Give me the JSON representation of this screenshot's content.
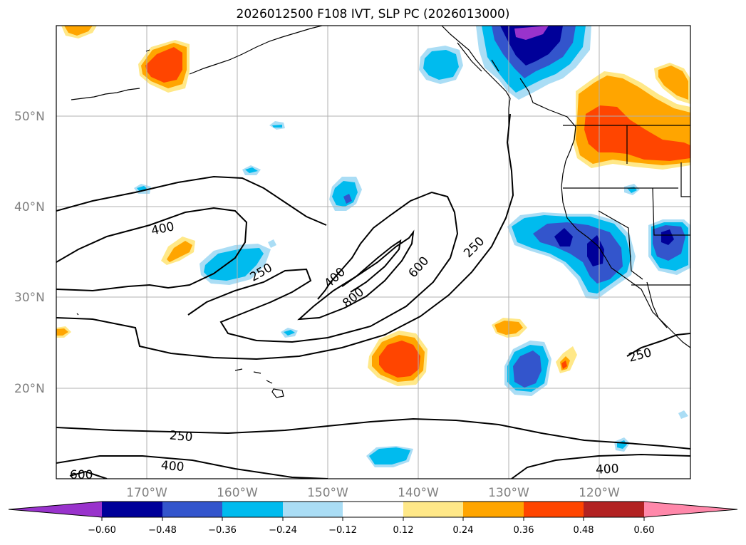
{
  "title": "2026012500 F108 IVT, SLP PC (2026013000)",
  "map": {
    "lat_labels": [
      "50°N",
      "40°N",
      "30°N",
      "20°N"
    ],
    "lon_labels": [
      "170°W",
      "160°W",
      "150°W",
      "140°W",
      "130°W",
      "120°W"
    ],
    "gridlines": true
  },
  "contour_labels": [
    "400",
    "250",
    "400",
    "800",
    "600",
    "250",
    "250",
    "250",
    "400",
    "600",
    "400"
  ],
  "colorbar": {
    "ticks": [
      "−0.60",
      "−0.48",
      "−0.36",
      "−0.24",
      "−0.12",
      "0.12",
      "0.24",
      "0.36",
      "0.48",
      "0.60"
    ],
    "colors": {
      "lt_neg_extend": "#9933cc",
      "c1": "#000099",
      "c2": "#3355cc",
      "c3": "#00bbee",
      "c4": "#aaddf5",
      "c5": "#ffffff",
      "c6": "#ffe888",
      "c7": "#ffa500",
      "c8": "#ff4500",
      "c9": "#b22222",
      "gt_pos_extend": "#ff88aa"
    }
  }
}
